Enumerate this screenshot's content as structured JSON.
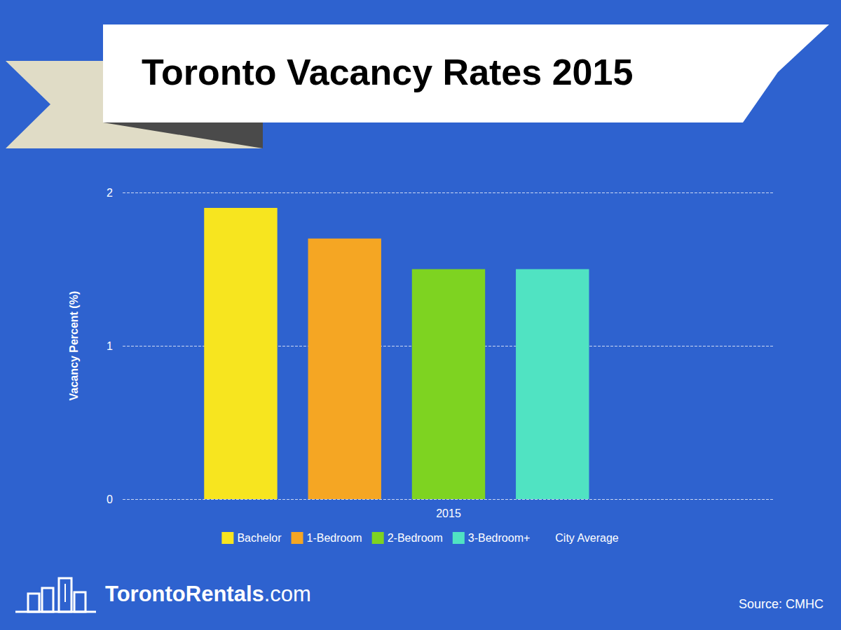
{
  "chart_data": {
    "type": "bar",
    "title": "Toronto Vacancy Rates 2015",
    "categories": [
      "2015"
    ],
    "series": [
      {
        "name": "Bachelor",
        "color": "#f7e51f",
        "values": [
          1.9
        ]
      },
      {
        "name": "1-Bedroom",
        "color": "#f5a623",
        "values": [
          1.7
        ]
      },
      {
        "name": "2-Bedroom",
        "color": "#7ed321",
        "values": [
          1.5
        ]
      },
      {
        "name": "3-Bedroom+",
        "color": "#50e3c2",
        "values": [
          1.5
        ]
      },
      {
        "name": "City Average",
        "values": [
          null
        ]
      }
    ],
    "ylabel": "Vacancy Percent (%)",
    "ylim": [
      0,
      2
    ],
    "yticks": [
      0,
      1,
      2
    ],
    "grid": true,
    "legend": "bottom",
    "brand": "TorontoRentals.com",
    "source": "Source: CMHC"
  }
}
